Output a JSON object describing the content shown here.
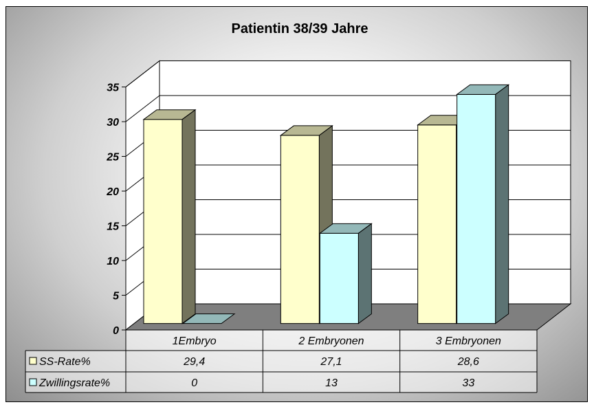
{
  "chart_data": {
    "type": "bar",
    "title": "Patientin  38/39 Jahre",
    "categories": [
      "1Embryo",
      "2 Embryonen",
      "3 Embryonen"
    ],
    "series": [
      {
        "name": "SS-Rate%",
        "values": [
          29.4,
          27.1,
          28.6
        ],
        "labels": [
          "29,4",
          "27,1",
          "28,6"
        ],
        "color": "#ffffcc"
      },
      {
        "name": "Zwillingsrate%",
        "values": [
          0,
          13,
          33
        ],
        "labels": [
          "0",
          "13",
          "33"
        ],
        "color": "#ccffff"
      }
    ],
    "ylim": [
      0,
      35
    ],
    "yticks": [
      0,
      5,
      10,
      15,
      20,
      25,
      30,
      35
    ],
    "grid": true,
    "data_table": true,
    "legend_placement": "in data table"
  }
}
